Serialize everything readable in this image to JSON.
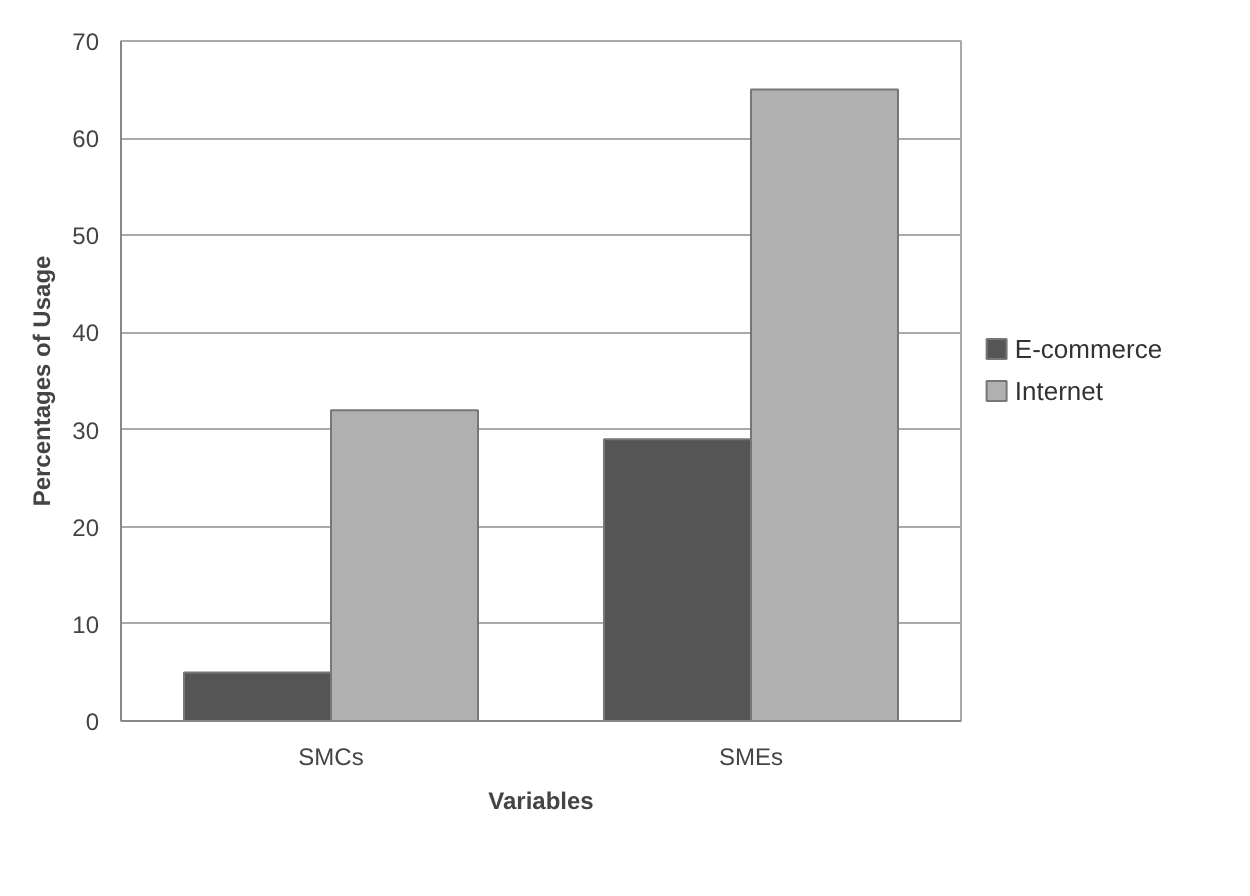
{
  "chart_data": {
    "type": "bar",
    "xlabel": "Variables",
    "ylabel": "Percentages of Usage",
    "categories": [
      "SMCs",
      "SMEs"
    ],
    "series": [
      {
        "name": "E-commerce",
        "color": "#555555",
        "values": [
          5,
          29
        ]
      },
      {
        "name": "Internet",
        "color": "#b0b0b0",
        "values": [
          32,
          65
        ]
      }
    ],
    "ylim": [
      0,
      70
    ],
    "yticks": [
      0,
      10,
      20,
      30,
      40,
      50,
      60,
      70
    ],
    "grid": "y",
    "legend": "right"
  }
}
